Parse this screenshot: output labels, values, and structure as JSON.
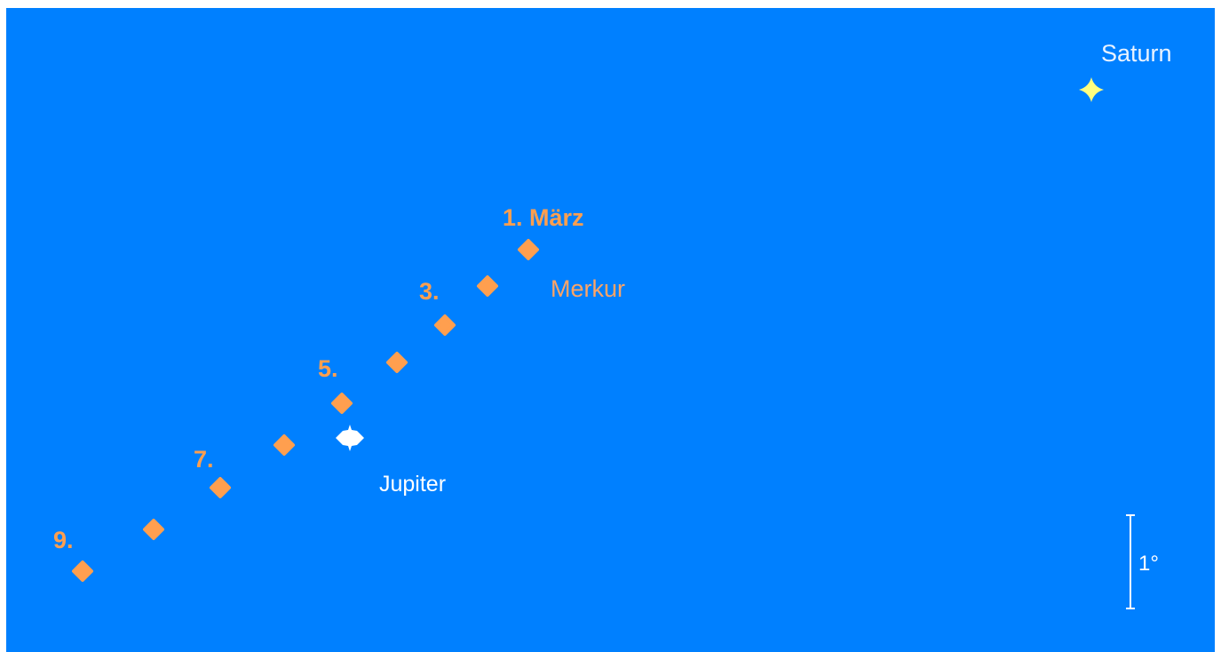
{
  "colors": {
    "sky": "#0080ff",
    "mercury": "#ff9f4f",
    "jupiter": "#ffffff",
    "saturn": "#ffff80",
    "label_white": "#ffffff",
    "saturn_label": "#e8f2ff",
    "merkur_label": "#ffa466"
  },
  "labels": {
    "saturn": "Saturn",
    "jupiter": "Jupiter",
    "merkur": "Merkur",
    "scale": "1°"
  },
  "mercury_positions": [
    {
      "day": 1,
      "label": "1. März"
    },
    {
      "day": 2,
      "label": ""
    },
    {
      "day": 3,
      "label": "3."
    },
    {
      "day": 4,
      "label": ""
    },
    {
      "day": 5,
      "label": "5."
    },
    {
      "day": 6,
      "label": ""
    },
    {
      "day": 7,
      "label": "7."
    },
    {
      "day": 8,
      "label": ""
    },
    {
      "day": 9,
      "label": "9."
    }
  ],
  "icons": {
    "mercury": "orange-diamond-icon",
    "jupiter": "white-planet-disk-icon",
    "saturn": "yellow-four-point-star-icon",
    "scale": "vertical-scale-bar-icon"
  }
}
